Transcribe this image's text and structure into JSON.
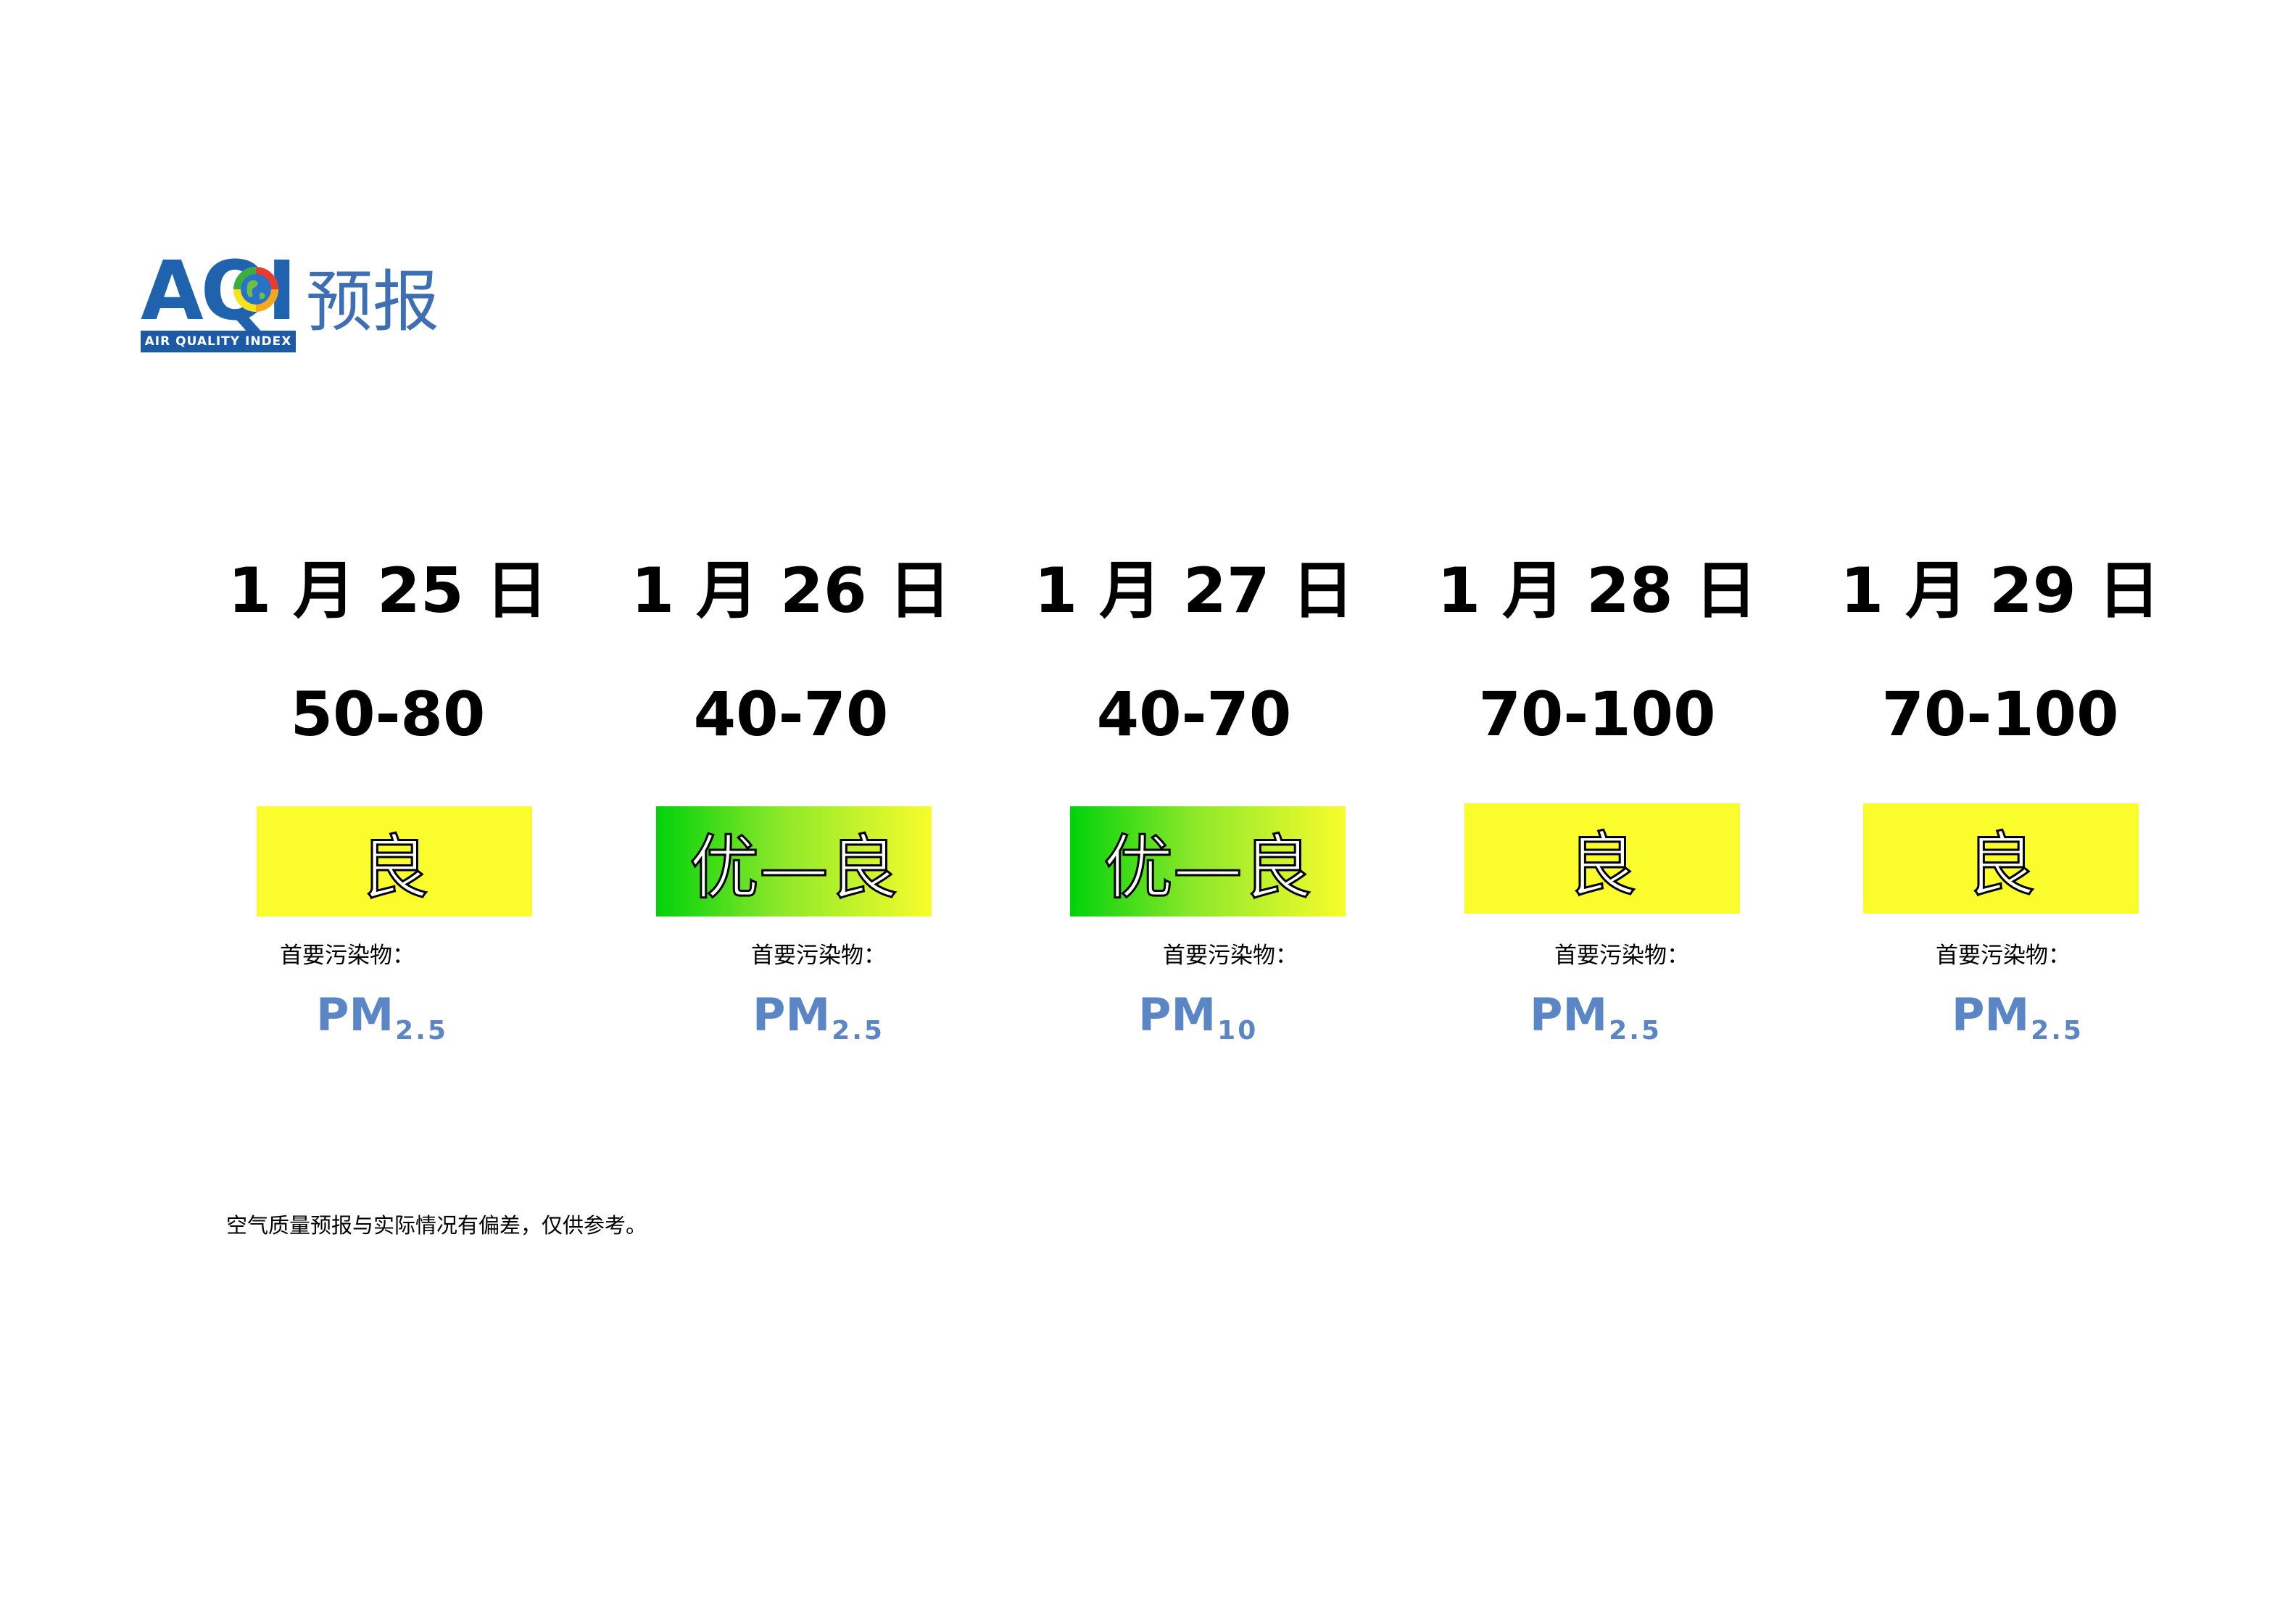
{
  "logo": {
    "letters": "AQI",
    "strip": "AIR QUALITY INDEX",
    "title": "预报"
  },
  "days": [
    {
      "date": "1 月 25 日",
      "range": "50-80",
      "level": "良",
      "pollutant_label": "首要污染物：",
      "pollutant_main": "PM",
      "pollutant_sub": "2.5"
    },
    {
      "date": "1 月 26 日",
      "range": "40-70",
      "level": "优—良",
      "pollutant_label": "首要污染物：",
      "pollutant_main": "PM",
      "pollutant_sub": "2.5"
    },
    {
      "date": "1 月 27 日",
      "range": "40-70",
      "level": "优—良",
      "pollutant_label": "首要污染物：",
      "pollutant_main": "PM",
      "pollutant_sub": "10"
    },
    {
      "date": "1 月 28 日",
      "range": "70-100",
      "level": "良",
      "pollutant_label": "首要污染物：",
      "pollutant_main": "PM",
      "pollutant_sub": "2.5"
    },
    {
      "date": "1 月 29 日",
      "range": "70-100",
      "level": "良",
      "pollutant_label": "首要污染物：",
      "pollutant_main": "PM",
      "pollutant_sub": "2.5"
    }
  ],
  "colors": {
    "good": "#fafc2c",
    "excellent": "#00d20a",
    "pollutant_text": "#5a86c6",
    "logo_blue": "#1f62ad"
  },
  "footnote": "空气质量预报与实际情况有偏差，仅供参考。"
}
